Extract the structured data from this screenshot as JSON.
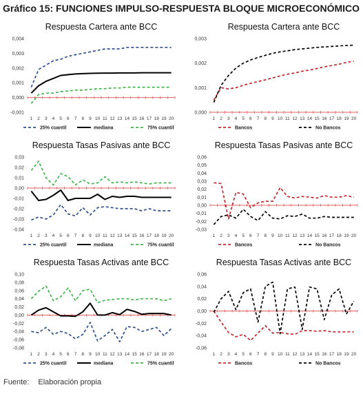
{
  "figure_title": "Gráfico 15: FUNCIONES IMPULSO-RESPUESTA BLOQUE MICROECONÓMICO",
  "source": {
    "label": "Fuente:",
    "text": "Elaboración propia"
  },
  "colors": {
    "blue": "#2e4f8a",
    "black": "#000000",
    "green": "#3fb54a",
    "red": "#c0282d",
    "zero_red": "#e06060"
  },
  "chart_data": [
    {
      "type": "line",
      "title": "Respuesta Cartera ante BCC",
      "x": [
        1,
        2,
        3,
        4,
        5,
        6,
        7,
        8,
        9,
        10,
        11,
        12,
        13,
        14,
        15,
        16,
        17,
        18,
        19,
        20
      ],
      "ylim": [
        -0.001,
        0.004
      ],
      "yticks": [
        "-0,001",
        "0,000",
        "0,001",
        "0,002",
        "0,003",
        "0,004"
      ],
      "ytick_values": [
        -0.001,
        0,
        0.001,
        0.002,
        0.003,
        0.004
      ],
      "legend_position": "bottom",
      "series": [
        {
          "name": "25% cuantil",
          "color": "#2e4f8a",
          "dash": "dashed",
          "values": [
            0.0007,
            0.0019,
            0.0022,
            0.0025,
            0.0026,
            0.0028,
            0.0029,
            0.003,
            0.0031,
            0.0032,
            0.0033,
            0.0033,
            0.0033,
            0.0034,
            0.0034,
            0.0034,
            0.0034,
            0.0034,
            0.0034,
            0.0034
          ]
        },
        {
          "name": "mediana",
          "color": "#000000",
          "dash": "solid",
          "values": [
            0.0003,
            0.0008,
            0.0011,
            0.0013,
            0.0015,
            0.00155,
            0.0016,
            0.00162,
            0.00164,
            0.00165,
            0.00166,
            0.00166,
            0.00167,
            0.00167,
            0.00167,
            0.00168,
            0.00168,
            0.00168,
            0.00168,
            0.00168
          ]
        },
        {
          "name": "75% cuantil",
          "color": "#3fb54a",
          "dash": "dashed",
          "values": [
            -0.0004,
            0.0002,
            0.0003,
            0.0003,
            0.0004,
            0.00045,
            0.0005,
            0.0005,
            0.00055,
            0.0006,
            0.0006,
            0.00065,
            0.00065,
            0.0007,
            0.0007,
            0.0007,
            0.0007,
            0.0007,
            0.0007,
            0.0007
          ]
        }
      ]
    },
    {
      "type": "line",
      "title": "Respuesta Cartera ante BCC",
      "x": [
        1,
        2,
        3,
        4,
        5,
        6,
        7,
        8,
        9,
        10,
        11,
        12,
        13,
        14,
        15,
        16,
        17,
        18,
        19,
        20
      ],
      "ylim": [
        0,
        0.003
      ],
      "yticks": [
        "0,000",
        "0,001",
        "0,002",
        "0,003"
      ],
      "ytick_values": [
        0,
        0.001,
        0.002,
        0.003
      ],
      "legend_position": "bottom",
      "series": [
        {
          "name": "Bancos",
          "color": "#c0282d",
          "dash": "dashed",
          "values": [
            0.0005,
            0.001,
            0.00095,
            0.001,
            0.0011,
            0.00118,
            0.00125,
            0.00132,
            0.0014,
            0.00148,
            0.00155,
            0.0016,
            0.00167,
            0.00172,
            0.00178,
            0.00185,
            0.0019,
            0.00196,
            0.00203,
            0.00208
          ]
        },
        {
          "name": "No Bancos",
          "color": "#000000",
          "dash": "dashed",
          "values": [
            0.0004,
            0.0011,
            0.0015,
            0.0018,
            0.002,
            0.00213,
            0.00223,
            0.00232,
            0.0024,
            0.00246,
            0.0025,
            0.00255,
            0.00258,
            0.00261,
            0.00264,
            0.00266,
            0.00268,
            0.0027,
            0.00272,
            0.00273
          ]
        }
      ]
    },
    {
      "type": "line",
      "title": "Respuesta Tasas Pasivas ante BCC",
      "x": [
        1,
        2,
        3,
        4,
        5,
        6,
        7,
        8,
        9,
        10,
        11,
        12,
        13,
        14,
        15,
        16,
        17,
        18,
        19,
        20
      ],
      "ylim": [
        -0.04,
        0.03
      ],
      "yticks": [
        "-0,04",
        "-0,03",
        "-0,02",
        "-0,01",
        "0,00",
        "0,01",
        "0,02",
        "0,03"
      ],
      "ytick_values": [
        -0.04,
        -0.03,
        -0.02,
        -0.01,
        0,
        0.01,
        0.02,
        0.03
      ],
      "legend_position": "bottom",
      "series": [
        {
          "name": "25% cuantil",
          "color": "#2e4f8a",
          "dash": "dashed",
          "values": [
            -0.031,
            -0.028,
            -0.03,
            -0.026,
            -0.016,
            -0.025,
            -0.027,
            -0.019,
            -0.026,
            -0.019,
            -0.018,
            -0.019,
            -0.02,
            -0.02,
            -0.02,
            -0.022,
            -0.02,
            -0.022,
            -0.022,
            -0.022
          ]
        },
        {
          "name": "mediana",
          "color": "#000000",
          "dash": "solid",
          "values": [
            -0.003,
            -0.012,
            -0.011,
            -0.007,
            -0.002,
            -0.012,
            -0.01,
            -0.01,
            -0.01,
            -0.006,
            -0.011,
            -0.008,
            -0.009,
            -0.008,
            -0.008,
            -0.009,
            -0.009,
            -0.009,
            -0.009,
            -0.009
          ]
        },
        {
          "name": "75% cuantil",
          "color": "#3fb54a",
          "dash": "dashed",
          "values": [
            0.017,
            0.026,
            0.01,
            0.003,
            0.014,
            0.011,
            0.003,
            0.008,
            0.004,
            0.005,
            0.011,
            0.005,
            0.006,
            0.005,
            0.006,
            0.005,
            0.004,
            0.005,
            0.005,
            0.005
          ]
        }
      ]
    },
    {
      "type": "line",
      "title": "Respuesta Tasas Pasivas ante BCC",
      "x": [
        1,
        2,
        3,
        4,
        5,
        6,
        7,
        8,
        9,
        10,
        11,
        12,
        13,
        14,
        15,
        16,
        17,
        18,
        19,
        20
      ],
      "ylim": [
        -0.03,
        0.06
      ],
      "yticks": [
        "-0,03",
        "-0,02",
        "-0,01",
        "0,00",
        "0,01",
        "0,02",
        "0,03",
        "0,04",
        "0,05",
        "0,06"
      ],
      "ytick_values": [
        -0.03,
        -0.02,
        -0.01,
        0,
        0.01,
        0.02,
        0.03,
        0.04,
        0.05,
        0.06
      ],
      "legend_position": "bottom",
      "series": [
        {
          "name": "Bancos",
          "color": "#c0282d",
          "dash": "dashed",
          "values": [
            0.028,
            0.027,
            -0.017,
            0.016,
            0.014,
            -0.003,
            0.003,
            0.005,
            0.005,
            0.022,
            0.011,
            0.009,
            0.011,
            0.01,
            0.009,
            0.012,
            0.01,
            0.01,
            0.012,
            0.01
          ]
        },
        {
          "name": "No Bancos",
          "color": "#000000",
          "dash": "dashed",
          "values": [
            -0.024,
            -0.014,
            -0.012,
            -0.016,
            -0.005,
            -0.014,
            -0.019,
            -0.008,
            -0.016,
            -0.017,
            -0.013,
            -0.014,
            -0.011,
            -0.016,
            -0.016,
            -0.014,
            -0.015,
            -0.015,
            -0.015,
            -0.015
          ]
        }
      ]
    },
    {
      "type": "line",
      "title": "Respuesta Tasas Activas ante BCC",
      "x": [
        1,
        2,
        3,
        4,
        5,
        6,
        7,
        8,
        9,
        10,
        11,
        12,
        13,
        14,
        15,
        16,
        17,
        18,
        19,
        20
      ],
      "ylim": [
        -0.08,
        0.1
      ],
      "yticks": [
        "-0,08",
        "-0,06",
        "-0,04",
        "-0,02",
        "0,00",
        "0,02",
        "0,04",
        "0,06",
        "0,08",
        "0,10"
      ],
      "ytick_values": [
        -0.08,
        -0.06,
        -0.04,
        -0.02,
        0,
        0.02,
        0.04,
        0.06,
        0.08,
        0.1
      ],
      "legend_position": "bottom",
      "series": [
        {
          "name": "25% cuantil",
          "color": "#2e4f8a",
          "dash": "dashed",
          "values": [
            -0.04,
            -0.043,
            -0.03,
            -0.047,
            -0.04,
            -0.045,
            -0.058,
            -0.047,
            -0.018,
            -0.063,
            -0.05,
            -0.035,
            -0.065,
            -0.028,
            -0.03,
            -0.04,
            -0.035,
            -0.03,
            -0.05,
            -0.033
          ]
        },
        {
          "name": "mediana",
          "color": "#000000",
          "dash": "solid",
          "values": [
            0.0,
            0.012,
            0.018,
            0.008,
            -0.002,
            -0.002,
            -0.003,
            0.008,
            0.029,
            0.0,
            0.0,
            0.006,
            0.001,
            0.014,
            0.009,
            0.002,
            0.004,
            0.004,
            0.004,
            0.0
          ]
        },
        {
          "name": "75% cuantil",
          "color": "#3fb54a",
          "dash": "dashed",
          "values": [
            0.04,
            0.058,
            0.071,
            0.035,
            0.045,
            0.066,
            0.035,
            0.06,
            0.063,
            0.03,
            0.036,
            0.038,
            0.04,
            0.04,
            0.037,
            0.04,
            0.04,
            0.04,
            0.035,
            0.04
          ]
        }
      ]
    },
    {
      "type": "line",
      "title": "Respuesta Tasas Activas ante BCC",
      "x": [
        1,
        2,
        3,
        4,
        5,
        6,
        7,
        8,
        9,
        10,
        11,
        12,
        13,
        14,
        15,
        16,
        17,
        18,
        19,
        20
      ],
      "ylim": [
        -0.06,
        0.06
      ],
      "yticks": [
        "-0,06",
        "-0,04",
        "-0,02",
        "0,00",
        "0,02",
        "0,04",
        "0,06"
      ],
      "ytick_values": [
        -0.06,
        -0.04,
        -0.02,
        0,
        0.02,
        0.04,
        0.06
      ],
      "legend_position": "bottom",
      "series": [
        {
          "name": "Bancos",
          "color": "#c0282d",
          "dash": "dashed",
          "values": [
            0.0,
            -0.018,
            -0.035,
            -0.042,
            -0.038,
            -0.048,
            -0.036,
            -0.024,
            -0.036,
            -0.035,
            -0.037,
            -0.038,
            -0.032,
            -0.032,
            -0.033,
            -0.032,
            -0.034,
            -0.034,
            -0.034,
            -0.034
          ]
        },
        {
          "name": "No Bancos",
          "color": "#000000",
          "dash": "dashed",
          "values": [
            -0.002,
            0.02,
            0.032,
            0.002,
            0.03,
            0.036,
            -0.018,
            0.04,
            0.047,
            -0.037,
            0.036,
            0.039,
            -0.03,
            0.039,
            0.036,
            -0.014,
            0.026,
            0.036,
            -0.005,
            0.016
          ]
        }
      ]
    }
  ]
}
